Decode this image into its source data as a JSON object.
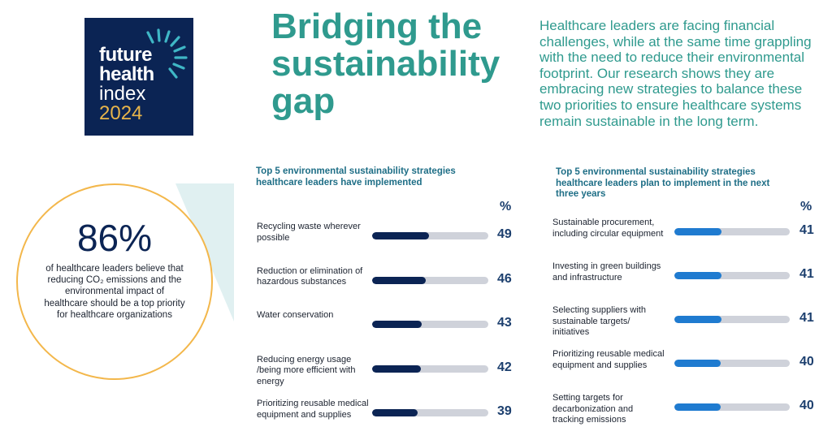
{
  "logo": {
    "line1": "future",
    "line2": "health",
    "line3": "index",
    "line4": "2024",
    "colors": {
      "background": "#0b2454",
      "year": "#e8b54a",
      "rays": "#3fb7c6"
    }
  },
  "headline": "Bridging the sustainability gap",
  "intro": "Healthcare leaders are facing financial challenges, while at the same time grappling with the need to reduce their environmental footprint. Our research shows they are embracing new strategies to balance these two priorities to ensure healthcare systems remain sustainable in the long term.",
  "stat": {
    "value": "86%",
    "text": "of healthcare leaders believe that reducing CO₂ emissions and the environmental impact of healthcare should be a top priority for healthcare organizations"
  },
  "colors": {
    "accent": "#2f9a8e",
    "circle": "#f3b74b",
    "bar_left": "#0b2454",
    "bar_right": "#1f7bd0",
    "track": "#cfd2da"
  },
  "chart_data": [
    {
      "type": "bar",
      "orientation": "horizontal",
      "title": "Top 5 environmental sustainability strategies healthcare leaders have implemented",
      "unit_label": "%",
      "xlim": [
        0,
        100
      ],
      "categories": [
        "Recycling waste wherever possible",
        "Reduction or elimination of hazardous substances",
        "Water conservation",
        "Reducing energy usage /being more efficient with energy",
        "Prioritizing reusable medical equipment and supplies"
      ],
      "values": [
        49,
        46,
        43,
        42,
        39
      ]
    },
    {
      "type": "bar",
      "orientation": "horizontal",
      "title": "Top 5 environmental sustainability strategies healthcare leaders plan to implement in the next three years",
      "unit_label": "%",
      "xlim": [
        0,
        100
      ],
      "categories": [
        "Sustainable procurement, including circular equipment",
        "Investing in green buildings and infrastructure",
        "Selecting suppliers with sustainable targets/ initiatives",
        "Prioritizing reusable medical equipment and supplies",
        "Setting targets for decarbonization and tracking emissions"
      ],
      "values": [
        41,
        41,
        41,
        40,
        40
      ]
    }
  ]
}
